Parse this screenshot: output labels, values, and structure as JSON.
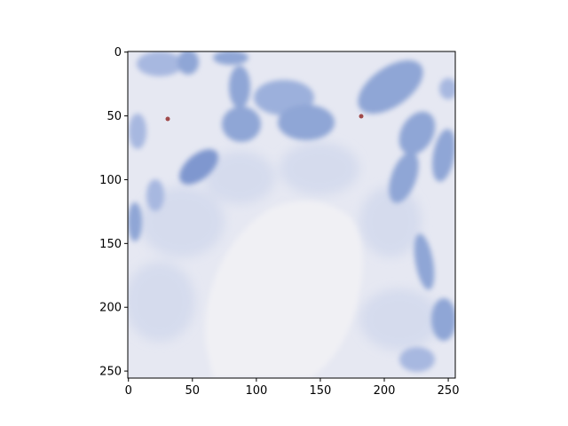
{
  "figure": {
    "kind": "image-with-axes",
    "image_description": "micrograph of pale tissue with blue-stained cells and a large pale central region",
    "colors": {
      "background": "#e6e8f2",
      "cell_blue": "#8fa6d6",
      "cell_blue_dark": "#6f88c4",
      "pale_region": "#f0f0f4",
      "speck_red": "#a0494a"
    }
  },
  "axes": {
    "x": {
      "range": [
        0,
        256
      ],
      "ticks": [
        {
          "value": 0,
          "label": "0"
        },
        {
          "value": 50,
          "label": "50"
        },
        {
          "value": 100,
          "label": "100"
        },
        {
          "value": 150,
          "label": "150"
        },
        {
          "value": 200,
          "label": "200"
        },
        {
          "value": 250,
          "label": "250"
        }
      ]
    },
    "y": {
      "range": [
        0,
        256
      ],
      "inverted": true,
      "ticks": [
        {
          "value": 0,
          "label": "0"
        },
        {
          "value": 50,
          "label": "50"
        },
        {
          "value": 100,
          "label": "100"
        },
        {
          "value": 150,
          "label": "150"
        },
        {
          "value": 200,
          "label": "200"
        },
        {
          "value": 250,
          "label": "250"
        }
      ]
    }
  }
}
